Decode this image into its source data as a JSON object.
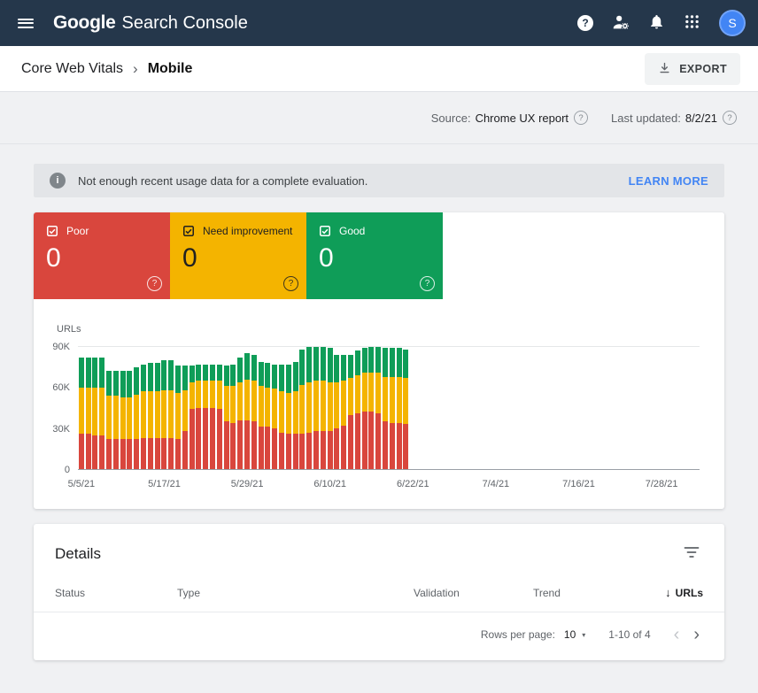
{
  "header": {
    "logo_google": "Google",
    "logo_product": "Search Console",
    "avatar_letter": "S"
  },
  "icons": {
    "menu": "hamburger-bars",
    "help": "question-circle-filled",
    "user_settings": "person-gear",
    "notifications": "bell",
    "apps": "dots-grid-3x3",
    "export": "download-arrow",
    "info": "info-circle-filled",
    "filter": "filter-lines",
    "sort": "arrow-down",
    "tile_check": "checked-checkbox",
    "tile_help": "question-circle-outline"
  },
  "glyphs": {
    "question": "?",
    "info": "i",
    "caret_down": "▾",
    "arrow_down": "↓"
  },
  "breadcrumb": {
    "section": "Core Web Vitals",
    "separator": "›",
    "page": "Mobile",
    "export_label": "EXPORT"
  },
  "meta": {
    "source_label": "Source:",
    "source_value": "Chrome UX report",
    "updated_label": "Last updated:",
    "updated_value": "8/2/21"
  },
  "banner": {
    "message": "Not enough recent usage data for a complete evaluation.",
    "action": "LEARN MORE"
  },
  "tiles": [
    {
      "label": "Poor",
      "value": "0",
      "color": "#d9463d",
      "text_color": "#ffffff"
    },
    {
      "label": "Need improvement",
      "value": "0",
      "color": "#f4b400",
      "text_color": "#212121"
    },
    {
      "label": "Good",
      "value": "0",
      "color": "#0f9d58",
      "text_color": "#ffffff"
    }
  ],
  "chart_data": {
    "type": "bar",
    "stacked": true,
    "title": "",
    "xlabel": "",
    "ylabel": "URLs",
    "values_unit": "thousands of URLs (K)",
    "y_max": 95,
    "y_ticks": [
      {
        "v": 0,
        "label": "0"
      },
      {
        "v": 30,
        "label": "30K"
      },
      {
        "v": 60,
        "label": "60K"
      },
      {
        "v": 90,
        "label": "90K",
        "grid": true
      }
    ],
    "x_total_days": 90,
    "x_ticks": [
      {
        "day": 0,
        "label": "5/5/21"
      },
      {
        "day": 12,
        "label": "5/17/21"
      },
      {
        "day": 24,
        "label": "5/29/21"
      },
      {
        "day": 36,
        "label": "6/10/21"
      },
      {
        "day": 48,
        "label": "6/22/21"
      },
      {
        "day": 60,
        "label": "7/4/21"
      },
      {
        "day": 72,
        "label": "7/16/21"
      },
      {
        "day": 84,
        "label": "7/28/21"
      }
    ],
    "x": [
      "5/5/21",
      "5/6/21",
      "5/7/21",
      "5/8/21",
      "5/9/21",
      "5/10/21",
      "5/11/21",
      "5/12/21",
      "5/13/21",
      "5/14/21",
      "5/15/21",
      "5/16/21",
      "5/17/21",
      "5/18/21",
      "5/19/21",
      "5/20/21",
      "5/21/21",
      "5/22/21",
      "5/23/21",
      "5/24/21",
      "5/25/21",
      "5/26/21",
      "5/27/21",
      "5/28/21",
      "5/29/21",
      "5/30/21",
      "5/31/21",
      "6/1/21",
      "6/2/21",
      "6/3/21",
      "6/4/21",
      "6/5/21",
      "6/6/21",
      "6/7/21",
      "6/8/21",
      "6/9/21",
      "6/10/21",
      "6/11/21",
      "6/12/21",
      "6/13/21",
      "6/14/21",
      "6/15/21",
      "6/16/21",
      "6/17/21",
      "6/18/21",
      "6/19/21",
      "6/20/21",
      "6/21/21"
    ],
    "series": [
      {
        "name": "Poor",
        "color": "#d9463d",
        "values": [
          26,
          26,
          25,
          25,
          22,
          22,
          22,
          22,
          22,
          23,
          23,
          23,
          23,
          23,
          22,
          28,
          44,
          45,
          45,
          45,
          44,
          35,
          34,
          36,
          36,
          35,
          31,
          31,
          30,
          27,
          26,
          26,
          26,
          27,
          28,
          28,
          28,
          30,
          32,
          40,
          41,
          42,
          42,
          41,
          35,
          34,
          34,
          33
        ]
      },
      {
        "name": "Need improvement",
        "color": "#f4b400",
        "values": [
          34,
          34,
          35,
          35,
          32,
          32,
          31,
          31,
          33,
          34,
          34,
          34,
          35,
          35,
          34,
          30,
          20,
          20,
          20,
          20,
          21,
          26,
          27,
          28,
          30,
          30,
          30,
          29,
          29,
          30,
          30,
          31,
          36,
          37,
          37,
          37,
          36,
          34,
          33,
          27,
          28,
          29,
          29,
          30,
          33,
          34,
          34,
          34
        ]
      },
      {
        "name": "Good",
        "color": "#0f9d58",
        "values": [
          22,
          22,
          22,
          22,
          18,
          18,
          19,
          19,
          20,
          20,
          21,
          21,
          22,
          22,
          20,
          18,
          12,
          12,
          12,
          12,
          12,
          15,
          16,
          18,
          19,
          19,
          18,
          18,
          18,
          20,
          21,
          22,
          26,
          26,
          25,
          25,
          25,
          20,
          19,
          17,
          18,
          18,
          19,
          19,
          21,
          21,
          21,
          21
        ]
      }
    ],
    "legend_position": "none",
    "grid": "horizontal-90K-only"
  },
  "details": {
    "title": "Details",
    "columns": [
      "Status",
      "Type",
      "Validation",
      "Trend",
      "URLs"
    ],
    "pagination": {
      "rows_per_page_label": "Rows per page:",
      "rows_per_page_value": "10",
      "range": "1-10 of 4",
      "prev": "‹",
      "next": "›"
    }
  },
  "colors": {
    "header_bg": "#25374b",
    "page_bg": "#f0f1f3",
    "banner_bg": "#e3e5e8",
    "link_blue": "#4285f4",
    "avatar_bg": "#4285f4"
  }
}
